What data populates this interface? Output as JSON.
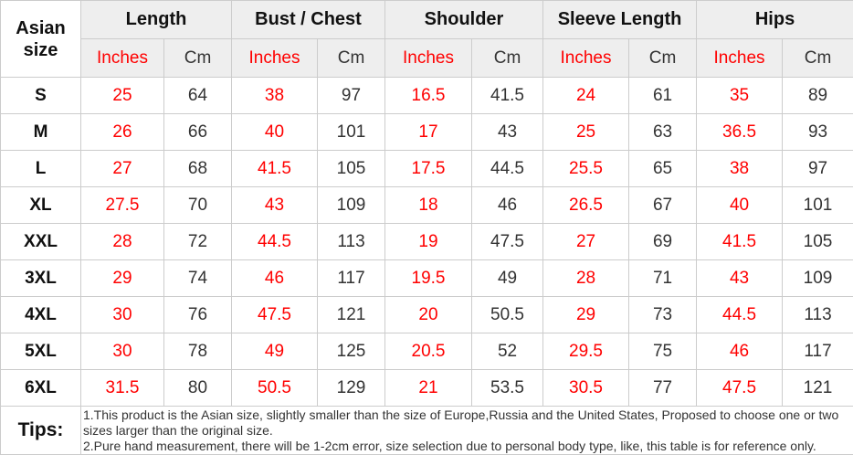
{
  "table": {
    "corner_header": "Asian size",
    "groups": [
      {
        "label": "Length"
      },
      {
        "label": "Bust / Chest"
      },
      {
        "label": "Shoulder"
      },
      {
        "label": "Sleeve Length"
      },
      {
        "label": "Hips"
      }
    ],
    "unit_headers": {
      "inches": "Inches",
      "cm": "Cm"
    },
    "rows": [
      {
        "size": "S",
        "values": [
          "25",
          "64",
          "38",
          "97",
          "16.5",
          "41.5",
          "24",
          "61",
          "35",
          "89"
        ]
      },
      {
        "size": "M",
        "values": [
          "26",
          "66",
          "40",
          "101",
          "17",
          "43",
          "25",
          "63",
          "36.5",
          "93"
        ]
      },
      {
        "size": "L",
        "values": [
          "27",
          "68",
          "41.5",
          "105",
          "17.5",
          "44.5",
          "25.5",
          "65",
          "38",
          "97"
        ]
      },
      {
        "size": "XL",
        "values": [
          "27.5",
          "70",
          "43",
          "109",
          "18",
          "46",
          "26.5",
          "67",
          "40",
          "101"
        ]
      },
      {
        "size": "XXL",
        "values": [
          "28",
          "72",
          "44.5",
          "113",
          "19",
          "47.5",
          "27",
          "69",
          "41.5",
          "105"
        ]
      },
      {
        "size": "3XL",
        "values": [
          "29",
          "74",
          "46",
          "117",
          "19.5",
          "49",
          "28",
          "71",
          "43",
          "109"
        ]
      },
      {
        "size": "4XL",
        "values": [
          "30",
          "76",
          "47.5",
          "121",
          "20",
          "50.5",
          "29",
          "73",
          "44.5",
          "113"
        ]
      },
      {
        "size": "5XL",
        "values": [
          "30",
          "78",
          "49",
          "125",
          "20.5",
          "52",
          "29.5",
          "75",
          "46",
          "117"
        ]
      },
      {
        "size": "6XL",
        "values": [
          "31.5",
          "80",
          "50.5",
          "129",
          "21",
          "53.5",
          "30.5",
          "77",
          "47.5",
          "121"
        ]
      }
    ],
    "tips": {
      "label": "Tips:",
      "text": "1.This product is the Asian size, slightly smaller than the size of Europe,Russia and the United States, Proposed to choose one or two sizes larger than the original size.\n2.Pure hand measurement, there will be 1-2cm error, size selection due to personal body type, like, this table is for reference only."
    },
    "colors": {
      "inches_text": "#ff0000",
      "cm_text": "#333333",
      "header_bg": "#eeeeee",
      "border": "#cccccc"
    }
  }
}
